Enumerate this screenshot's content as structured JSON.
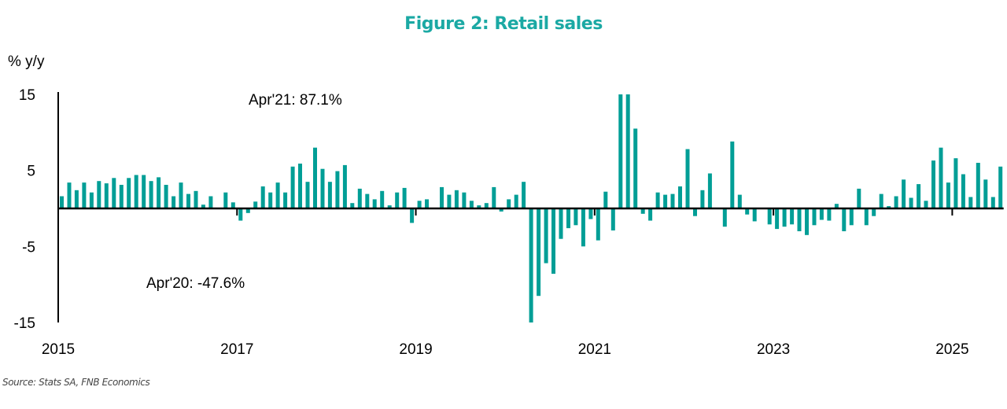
{
  "colors": {
    "title": "#1BA9A4",
    "bar": "#009E96",
    "axis": "#000000"
  },
  "chart_data": {
    "type": "bar",
    "title": "Figure 2: Retail sales",
    "ylabel": "% y/y",
    "xlabel": "",
    "ylim": [
      -15,
      15
    ],
    "yticks": [
      15,
      5,
      -5,
      -15
    ],
    "xticks": [
      "2015",
      "2017",
      "2019",
      "2021",
      "2023",
      "2025"
    ],
    "start": "2015-01",
    "frequency": "monthly",
    "grid": false,
    "legend": "none",
    "annotations": [
      {
        "text": "Apr'21: 87.1%",
        "month": "2021-04",
        "value": 87.1
      },
      {
        "text": "Apr'20: -47.6%",
        "month": "2020-04",
        "value": -47.6
      }
    ],
    "series": [
      {
        "name": "Retail sales % y/y",
        "values": [
          1.6,
          3.4,
          2.4,
          3.4,
          2.1,
          3.6,
          3.3,
          4.0,
          3.1,
          4.0,
          4.4,
          4.4,
          3.6,
          4.1,
          3.1,
          1.6,
          3.4,
          1.9,
          2.3,
          0.5,
          1.6,
          0.1,
          2.1,
          0.8,
          -1.6,
          -0.6,
          0.9,
          2.9,
          2.1,
          3.4,
          2.1,
          5.5,
          5.9,
          3.5,
          8.0,
          5.2,
          3.5,
          4.9,
          5.7,
          0.7,
          2.6,
          1.9,
          1.2,
          2.3,
          0.4,
          2.1,
          2.7,
          -1.9,
          1.0,
          1.2,
          0.1,
          2.8,
          1.8,
          2.4,
          2.1,
          1.0,
          0.4,
          0.7,
          2.8,
          -0.4,
          1.2,
          1.8,
          3.5,
          -47.6,
          -11.5,
          -7.2,
          -8.6,
          -4.0,
          -2.6,
          -2.2,
          -5.0,
          -1.4,
          -4.2,
          2.2,
          -2.9,
          87.1,
          15.0,
          10.5,
          -0.7,
          -1.6,
          2.1,
          1.8,
          1.9,
          2.9,
          7.8,
          -1.0,
          2.4,
          4.6,
          -0.1,
          -2.4,
          8.8,
          1.8,
          -0.8,
          -1.7,
          0.1,
          -2.1,
          -2.7,
          -2.4,
          -2.1,
          -3.0,
          -3.5,
          -2.2,
          -1.5,
          -1.6,
          0.6,
          -3.0,
          -2.2,
          2.6,
          -2.2,
          -1.0,
          1.9,
          0.3,
          1.6,
          3.8,
          1.4,
          3.2,
          1.0,
          6.3,
          8.0,
          3.4,
          6.6,
          4.5,
          1.5,
          6.0,
          3.8,
          1.5,
          5.5
        ]
      }
    ]
  },
  "footer": {
    "source": "Source: Stats SA, FNB Economics"
  }
}
